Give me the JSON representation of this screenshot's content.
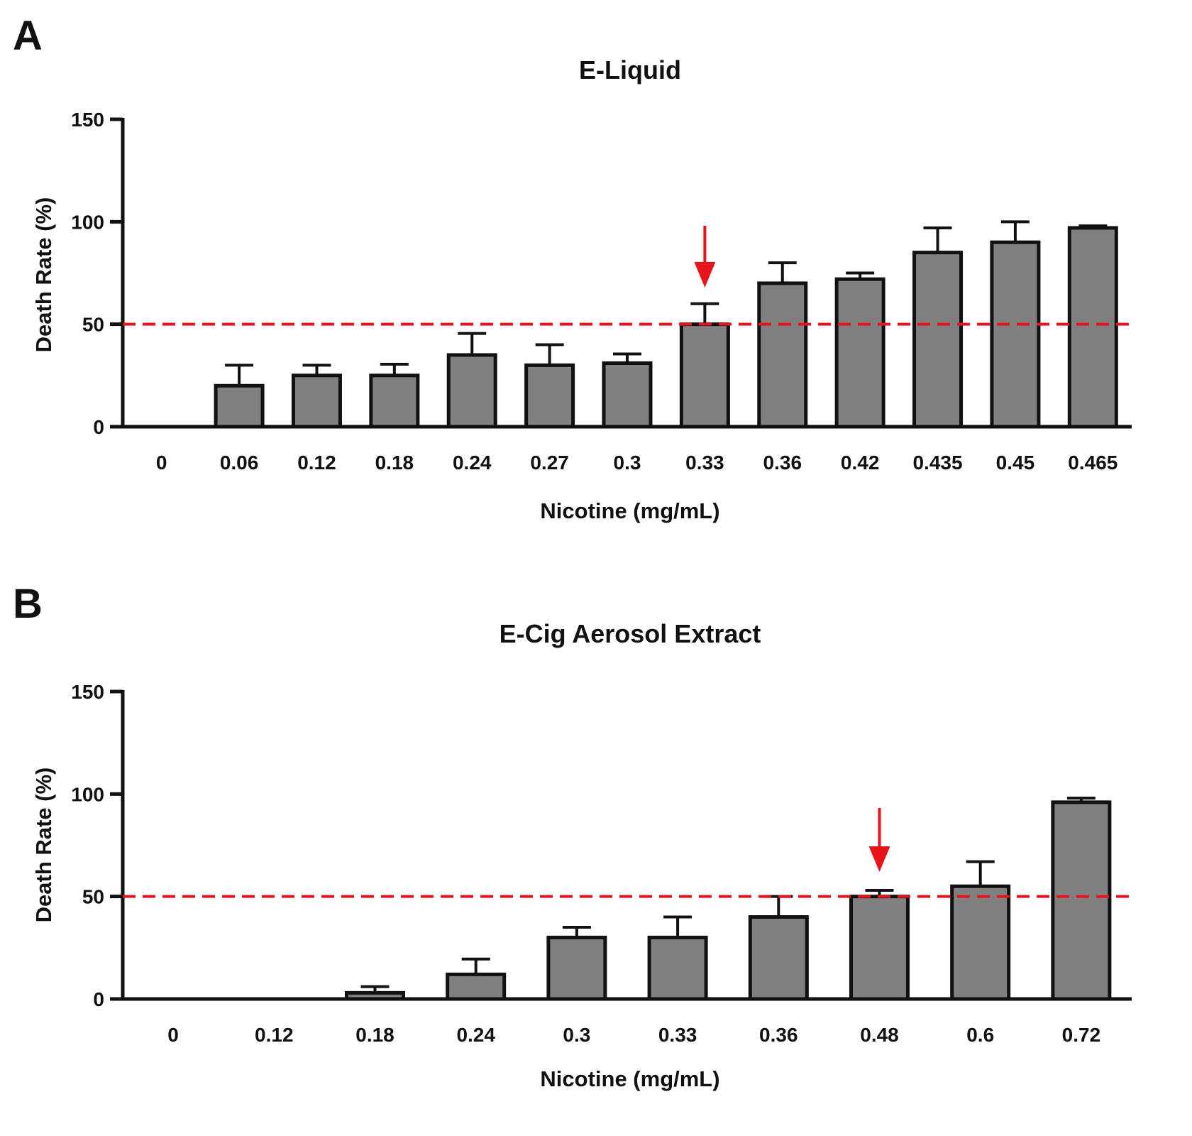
{
  "chart_data": [
    {
      "panel": "A",
      "type": "bar",
      "title": "E-Liquid",
      "xlabel": "Nicotine (mg/mL)",
      "ylabel": "Death Rate (%)",
      "ylim": [
        0,
        150
      ],
      "yticks": [
        "0",
        "50",
        "100",
        "150"
      ],
      "categories": [
        "0",
        "0.06",
        "0.12",
        "0.18",
        "0.24",
        "0.27",
        "0.3",
        "0.33",
        "0.36",
        "0.42",
        "0.435",
        "0.45",
        "0.465"
      ],
      "values": [
        0,
        20,
        25,
        25,
        35,
        30,
        31,
        50,
        70,
        72,
        85,
        90,
        97
      ],
      "error_upper": [
        0,
        30,
        30,
        30.5,
        45.5,
        40,
        35.5,
        60,
        80,
        75,
        97,
        100,
        98
      ],
      "reference_line": 50,
      "arrow_category": "0.33",
      "bar_color": "#808080",
      "reference_color": "#e8141c"
    },
    {
      "panel": "B",
      "type": "bar",
      "title": "E-Cig Aerosol Extract",
      "xlabel": "Nicotine (mg/mL)",
      "ylabel": "Death Rate (%)",
      "ylim": [
        0,
        150
      ],
      "yticks": [
        "0",
        "50",
        "100",
        "150"
      ],
      "categories": [
        "0",
        "0.12",
        "0.18",
        "0.24",
        "0.3",
        "0.33",
        "0.36",
        "0.48",
        "0.6",
        "0.72"
      ],
      "values": [
        0,
        0,
        3,
        12,
        30,
        30,
        40,
        50,
        55,
        96
      ],
      "error_upper": [
        0,
        0,
        6,
        19.5,
        35,
        40,
        50,
        53,
        67,
        98
      ],
      "reference_line": 50,
      "arrow_category": "0.48",
      "bar_color": "#808080",
      "reference_color": "#e8141c"
    }
  ]
}
